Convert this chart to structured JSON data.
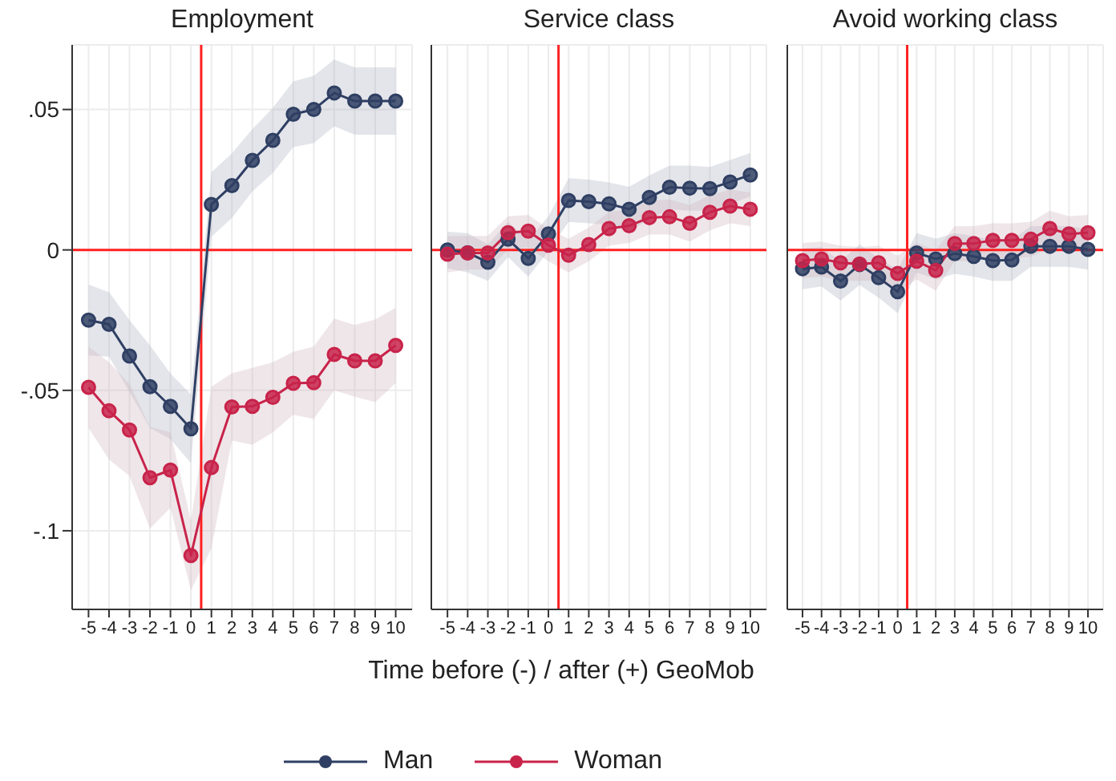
{
  "chart_data": [
    {
      "type": "line",
      "title": "Employment",
      "x": [
        -5,
        -4,
        -3,
        -2,
        -1,
        0,
        1,
        2,
        3,
        4,
        5,
        6,
        7,
        8,
        9,
        10
      ],
      "xlim": [
        -5.8,
        10.8
      ],
      "xticks": [
        -5,
        -4,
        -3,
        -2,
        -1,
        0,
        1,
        2,
        3,
        4,
        5,
        6,
        7,
        8,
        9,
        10
      ],
      "ylim": [
        -0.128,
        0.073
      ],
      "yticks": [
        {
          "value": -0.1,
          "label": "-.1"
        },
        {
          "value": -0.05,
          "label": "-.05"
        },
        0,
        {
          "value": 0.05,
          "label": ".05"
        }
      ],
      "grid": true,
      "marker": "circle",
      "line_style": "solid",
      "ref_lines": [
        {
          "axis": "x",
          "value": 0.5,
          "color": "#ff2020"
        },
        {
          "axis": "y",
          "value": 0,
          "color": "#ff2020"
        }
      ],
      "series": [
        {
          "color": "#2f3f63",
          "values": [
            -0.025,
            -0.0265,
            -0.0378,
            -0.0487,
            -0.0557,
            -0.0637,
            0.0162,
            0.0229,
            0.0319,
            0.039,
            0.0483,
            0.05,
            0.0559,
            0.053,
            0.053,
            0.053
          ],
          "upper": [
            -0.0124,
            -0.015,
            -0.025,
            -0.034,
            -0.044,
            -0.0515,
            0.0277,
            0.0344,
            0.043,
            0.0506,
            0.06,
            0.062,
            0.0678,
            0.065,
            0.065,
            0.065
          ],
          "lower": [
            -0.0376,
            -0.038,
            -0.0506,
            -0.0634,
            -0.0674,
            -0.0759,
            0.0047,
            0.0114,
            0.0208,
            0.0274,
            0.0366,
            0.038,
            0.044,
            0.041,
            0.041,
            0.041
          ]
        },
        {
          "color": "#c8234a",
          "values": [
            -0.0489,
            -0.0573,
            -0.0641,
            -0.0811,
            -0.0784,
            -0.1088,
            -0.0775,
            -0.0559,
            -0.0557,
            -0.0525,
            -0.0475,
            -0.0473,
            -0.0372,
            -0.0395,
            -0.0395,
            -0.034
          ],
          "upper": [
            -0.0344,
            -0.04,
            -0.0477,
            -0.063,
            -0.065,
            -0.0964,
            -0.0487,
            -0.0439,
            -0.042,
            -0.04,
            -0.0363,
            -0.0344,
            -0.0244,
            -0.0267,
            -0.0248,
            -0.0206
          ],
          "lower": [
            -0.0634,
            -0.0746,
            -0.0805,
            -0.0992,
            -0.0918,
            -0.1212,
            -0.1063,
            -0.0679,
            -0.0694,
            -0.065,
            -0.0587,
            -0.0602,
            -0.05,
            -0.0523,
            -0.0542,
            -0.0474
          ]
        }
      ]
    },
    {
      "type": "line",
      "title": "Service class",
      "xlabel": "Time before (-) / after (+) GeoMob",
      "legend": "bottom",
      "tick_labels": "x",
      "x": [
        -5,
        -4,
        -3,
        -2,
        -1,
        0,
        1,
        2,
        3,
        4,
        5,
        6,
        7,
        8,
        9,
        10
      ],
      "xlim": [
        -5.8,
        10.8
      ],
      "xticks": [
        -5,
        -4,
        -3,
        -2,
        -1,
        0,
        1,
        2,
        3,
        4,
        5,
        6,
        7,
        8,
        9,
        10
      ],
      "ylim": [
        -0.128,
        0.073
      ],
      "yticks": [
        -0.1,
        -0.05,
        0,
        0.05
      ],
      "grid": true,
      "marker": "circle",
      "line_style": "solid",
      "ref_lines": [
        {
          "axis": "x",
          "value": 0.5,
          "color": "#ff2020"
        },
        {
          "axis": "y",
          "value": 0,
          "color": "#ff2020"
        }
      ],
      "series": [
        {
          "name": "Man",
          "color": "#2f3f63",
          "values": [
            0,
            -0.001,
            -0.0044,
            0.0038,
            -0.003,
            0.0057,
            0.0176,
            0.0172,
            0.0164,
            0.0145,
            0.0187,
            0.0223,
            0.022,
            0.0218,
            0.0242,
            0.0267
          ],
          "upper": [
            0.0065,
            0.006,
            0.002,
            0.01,
            0.0035,
            0.012,
            0.0255,
            0.025,
            0.024,
            0.0225,
            0.0265,
            0.03,
            0.03,
            0.0295,
            0.032,
            0.0345
          ],
          "lower": [
            -0.0065,
            -0.008,
            -0.011,
            -0.0025,
            -0.0095,
            -0.0005,
            0.01,
            0.0095,
            0.009,
            0.0065,
            0.011,
            0.0145,
            0.014,
            0.014,
            0.0165,
            0.019
          ]
        },
        {
          "name": "Woman",
          "color": "#c8234a",
          "values": [
            -0.0015,
            -0.0011,
            -0.0011,
            0.0061,
            0.0067,
            0.0017,
            -0.0019,
            0.0019,
            0.0076,
            0.0086,
            0.0115,
            0.0118,
            0.0095,
            0.0134,
            0.0156,
            0.0145
          ],
          "upper": [
            0.005,
            0.005,
            0.005,
            0.012,
            0.0125,
            0.0075,
            0.004,
            0.008,
            0.0135,
            0.0145,
            0.0175,
            0.018,
            0.016,
            0.0195,
            0.0215,
            0.0205
          ],
          "lower": [
            -0.008,
            -0.007,
            -0.007,
            0,
            0.001,
            -0.004,
            -0.008,
            -0.004,
            0.0015,
            0.0025,
            0.0055,
            0.0055,
            0.003,
            0.007,
            0.0095,
            0.0085
          ]
        }
      ]
    },
    {
      "type": "line",
      "title": "Avoid working class",
      "tick_labels": "x",
      "x": [
        -5,
        -4,
        -3,
        -2,
        -1,
        0,
        1,
        2,
        3,
        4,
        5,
        6,
        7,
        8,
        9,
        10
      ],
      "xlim": [
        -5.8,
        10.8
      ],
      "xticks": [
        -5,
        -4,
        -3,
        -2,
        -1,
        0,
        1,
        2,
        3,
        4,
        5,
        6,
        7,
        8,
        9,
        10
      ],
      "ylim": [
        -0.128,
        0.073
      ],
      "yticks": [
        -0.1,
        -0.05,
        0,
        0.05
      ],
      "grid": true,
      "marker": "circle",
      "line_style": "solid",
      "ref_lines": [
        {
          "axis": "x",
          "value": 0.5,
          "color": "#ff2020"
        },
        {
          "axis": "y",
          "value": 0,
          "color": "#ff2020"
        }
      ],
      "series": [
        {
          "color": "#2f3f63",
          "values": [
            -0.0067,
            -0.0061,
            -0.0111,
            -0.0052,
            -0.0099,
            -0.0149,
            -0.0011,
            -0.0032,
            -0.0013,
            -0.0023,
            -0.0038,
            -0.0036,
            0.0013,
            0.0013,
            0.0013,
            0.0002
          ],
          "upper": [
            0.0005,
            0.001,
            -0.004,
            0.002,
            -0.003,
            -0.007,
            0.006,
            0.004,
            0.006,
            0.005,
            0.0035,
            0.0035,
            0.0085,
            0.0085,
            0.0085,
            0.0075
          ],
          "lower": [
            -0.014,
            -0.013,
            -0.018,
            -0.0125,
            -0.017,
            -0.0225,
            -0.008,
            -0.0105,
            -0.0085,
            -0.0095,
            -0.011,
            -0.011,
            -0.006,
            -0.006,
            -0.006,
            -0.007
          ]
        },
        {
          "color": "#c8234a",
          "values": [
            -0.0038,
            -0.0032,
            -0.0046,
            -0.005,
            -0.0046,
            -0.0084,
            -0.004,
            -0.0073,
            0.0023,
            0.0023,
            0.0034,
            0.0034,
            0.0038,
            0.0076,
            0.0057,
            0.0061
          ],
          "upper": [
            0.0025,
            0.003,
            0.0015,
            0.001,
            0.0015,
            -0.002,
            0.0025,
            0,
            0.0085,
            0.0085,
            0.0095,
            0.0095,
            0.01,
            0.014,
            0.012,
            0.0125
          ],
          "lower": [
            -0.01,
            -0.0095,
            -0.011,
            -0.011,
            -0.011,
            -0.015,
            -0.0105,
            -0.0145,
            -0.004,
            -0.004,
            -0.003,
            -0.003,
            -0.0025,
            0.001,
            -0.0005,
            0
          ]
        }
      ]
    }
  ]
}
